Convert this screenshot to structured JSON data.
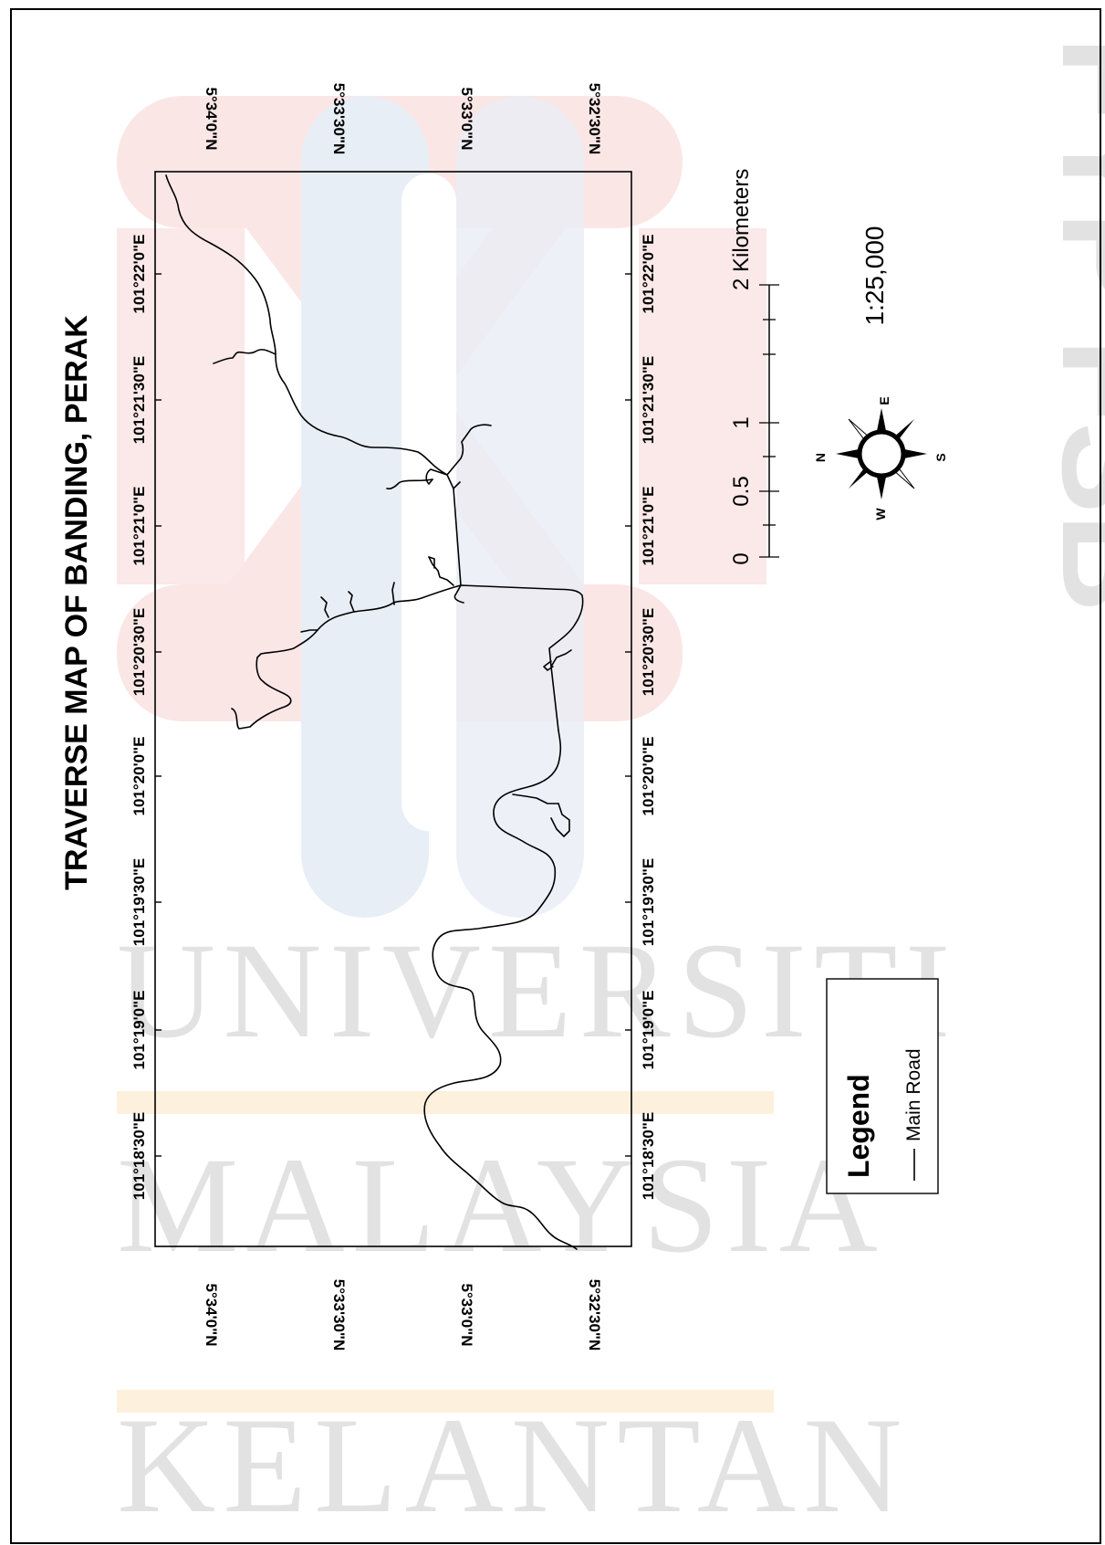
{
  "map": {
    "title": "TRAVERSE MAP OF BANDING, PERAK",
    "longitude_labels": [
      "101°18'30\"E",
      "101°19'0\"E",
      "101°19'30\"E",
      "101°20'0\"E",
      "101°20'30\"E",
      "101°21'0\"E",
      "101°21'30\"E",
      "101°22'0\"E"
    ],
    "latitude_labels": [
      "5°34'0\"N",
      "5°33'30\"N",
      "5°33'0\"N",
      "5°32'30\"N"
    ],
    "scale_bar": {
      "labels": [
        "0",
        "0.5",
        "1",
        "2 Kilometers"
      ],
      "ratio": "1:25,000"
    },
    "north_arrow": {
      "n": "N",
      "e": "E",
      "s": "S",
      "w": "W"
    },
    "legend": {
      "title": "Legend",
      "items": [
        {
          "label": "Main Road",
          "color": "#000000"
        }
      ]
    },
    "watermark": {
      "lines": [
        "UNIVERSITI",
        "MALAYSIA",
        "KELANTAN"
      ],
      "edge_text": "FYP FSB",
      "colors": {
        "pink": "#fbe6e6",
        "blue": "#e8eef5",
        "orange": "#fdf0dc"
      }
    }
  }
}
